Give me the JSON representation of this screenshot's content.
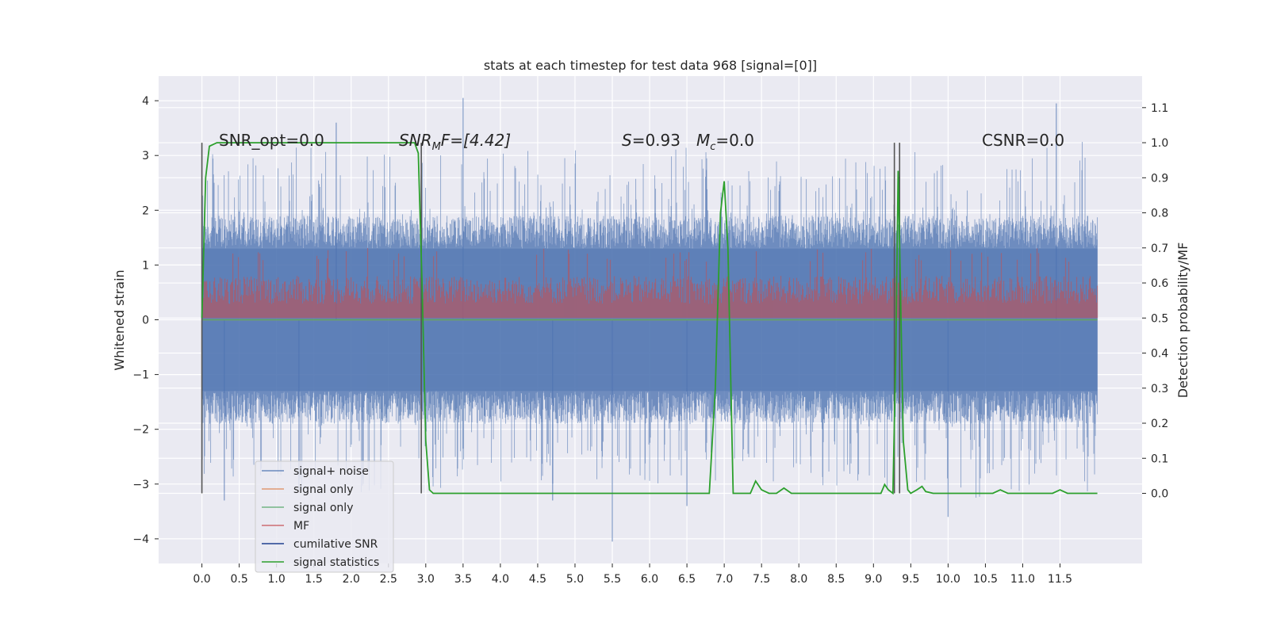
{
  "chart_data": {
    "type": "line",
    "title": "stats at each timestep for test data 968 [signal=[0]]",
    "ylabel": "Whitened strain",
    "ylabel_right": "Detection probability/MF",
    "xlim": [
      -0.58,
      12.6
    ],
    "ylim": [
      -4.45,
      4.45
    ],
    "ylim_right": [
      -0.2,
      1.19
    ],
    "x_ticks": [
      "0.0",
      "0.5",
      "1.0",
      "1.5",
      "2.0",
      "2.5",
      "3.0",
      "3.5",
      "4.0",
      "4.5",
      "5.0",
      "5.5",
      "6.0",
      "6.5",
      "7.0",
      "7.5",
      "8.0",
      "8.5",
      "9.0",
      "9.5",
      "10.0",
      "10.5",
      "11.0",
      "11.5"
    ],
    "y_ticks": [
      "4",
      "3",
      "2",
      "1",
      "0",
      "−1",
      "−2",
      "−3",
      "−4"
    ],
    "y_ticks_right": [
      "1.1",
      "1.0",
      "0.9",
      "0.8",
      "0.7",
      "0.6",
      "0.5",
      "0.4",
      "0.3",
      "0.2",
      "0.1",
      "0.0"
    ],
    "grid": true,
    "annotations": [
      {
        "id": "snr_opt",
        "text": "SNR_opt=0.0"
      },
      {
        "id": "snr_mf",
        "prefix": "SNR",
        "sub": "M",
        "suffix": "F=[4.42]"
      },
      {
        "id": "s_stat",
        "prefix": "S",
        "suffix": "=0.93"
      },
      {
        "id": "mc_stat",
        "prefix": "M",
        "sub": "c",
        "suffix": "=0.0"
      },
      {
        "id": "csnr",
        "text": "CSNR=0.0"
      }
    ],
    "vertical_lines_x": [
      0.0,
      2.94,
      9.28,
      9.35
    ],
    "legend_position": "lower-left",
    "series": [
      {
        "name": "signal+ noise",
        "color": "#4c72b0",
        "kind": "noise",
        "x_range": [
          0,
          12.0
        ],
        "envelope": {
          "upper_typ": 1.3,
          "upper_peak": 4.05,
          "lower_typ": -1.3,
          "lower_peak": -4.05
        },
        "noise_peaks": [
          {
            "x": 1.3,
            "y": -3.1
          },
          {
            "x": 1.8,
            "y": 3.6
          },
          {
            "x": 3.5,
            "y": 4.05
          },
          {
            "x": 4.7,
            "y": -3.3
          },
          {
            "x": 5.5,
            "y": -4.05
          },
          {
            "x": 6.5,
            "y": -3.4
          },
          {
            "x": 10.0,
            "y": -3.6
          },
          {
            "x": 11.45,
            "y": 3.95
          },
          {
            "x": 0.3,
            "y": -3.3
          }
        ]
      },
      {
        "name": "signal only",
        "color": "#dd8452",
        "kind": "flat",
        "y": 0.0
      },
      {
        "name": "signal only",
        "color": "#55a868",
        "kind": "flat",
        "y": 0.0
      },
      {
        "name": "MF",
        "color": "#c44e52",
        "kind": "band",
        "axis": "right",
        "base": 0.5,
        "typ": 0.6,
        "peak": 0.7
      },
      {
        "name": "cumilative SNR",
        "color": "#1f3f8f",
        "kind": "none"
      },
      {
        "name": "signal statistics",
        "color": "#2ca02c",
        "kind": "line",
        "axis": "right",
        "x": [
          0.0,
          0.05,
          0.1,
          0.2,
          0.5,
          1.0,
          1.5,
          2.0,
          2.5,
          2.85,
          2.9,
          2.95,
          3.0,
          3.05,
          3.1,
          3.2,
          3.5,
          3.8,
          4.0,
          5.0,
          6.0,
          6.8,
          6.88,
          6.95,
          7.0,
          7.05,
          7.12,
          7.2,
          7.3,
          7.35,
          7.42,
          7.5,
          7.6,
          7.7,
          7.8,
          7.9,
          8.0,
          8.5,
          8.9,
          9.0,
          9.1,
          9.15,
          9.2,
          9.26,
          9.3,
          9.33,
          9.36,
          9.4,
          9.46,
          9.5,
          9.58,
          9.65,
          9.7,
          9.8,
          10.0,
          10.5,
          10.6,
          10.7,
          10.8,
          10.9,
          11.0,
          11.4,
          11.5,
          11.6,
          12.0
        ],
        "y": [
          0.5,
          0.9,
          0.99,
          1.0,
          1.0,
          1.0,
          1.0,
          1.0,
          1.0,
          1.0,
          0.97,
          0.6,
          0.15,
          0.01,
          0.0,
          0.0,
          0.0,
          0.0,
          0.0,
          0.0,
          0.0,
          0.0,
          0.3,
          0.8,
          0.89,
          0.7,
          0.0,
          0.0,
          0.0,
          0.0,
          0.035,
          0.01,
          0.0,
          0.0,
          0.015,
          0.0,
          0.0,
          0.0,
          0.0,
          0.0,
          0.0,
          0.025,
          0.01,
          0.0,
          0.4,
          0.92,
          0.6,
          0.15,
          0.01,
          0.0,
          0.01,
          0.02,
          0.005,
          0.0,
          0.0,
          0.0,
          0.0,
          0.01,
          0.0,
          0.0,
          0.0,
          0.0,
          0.01,
          0.0,
          0.0
        ]
      }
    ]
  }
}
